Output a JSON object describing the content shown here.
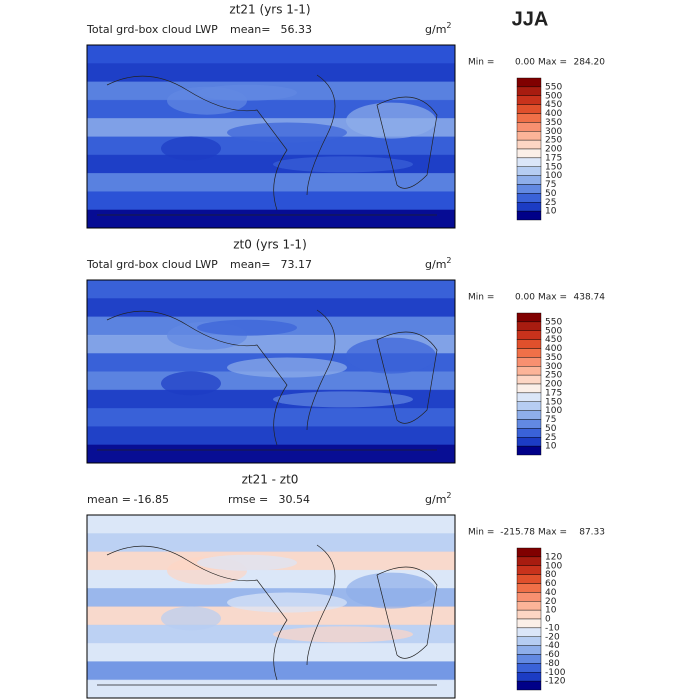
{
  "season": "JJA",
  "panels": [
    {
      "title": "zt21 (yrs 1-1)",
      "left_label": "Total grd-box cloud LWP",
      "stats": [
        {
          "label": "mean=",
          "value": "56.33"
        }
      ],
      "units": "g/m",
      "units_power": "2",
      "min_label": "Min =",
      "min": "0.00",
      "max_label": "Max =",
      "max": "284.20",
      "colorbar": {
        "levels": [
          550,
          500,
          450,
          400,
          350,
          300,
          250,
          200,
          175,
          150,
          100,
          75,
          50,
          25,
          10
        ],
        "colors": [
          "#800000",
          "#a81c10",
          "#c8321c",
          "#e0502c",
          "#f07048",
          "#f89070",
          "#fcb498",
          "#fdd6c4",
          "#fbefe8",
          "#dbe6f8",
          "#b6cdf2",
          "#8eaeea",
          "#6289e2",
          "#3a62d8",
          "#1c3cc4",
          "#000088"
        ]
      }
    },
    {
      "title": "zt0 (yrs 1-1)",
      "left_label": "Total grd-box cloud LWP",
      "stats": [
        {
          "label": "mean=",
          "value": "73.17"
        }
      ],
      "units": "g/m",
      "units_power": "2",
      "min_label": "Min =",
      "min": "0.00",
      "max_label": "Max =",
      "max": "438.74",
      "colorbar": {
        "levels": [
          550,
          500,
          450,
          400,
          350,
          300,
          250,
          200,
          175,
          150,
          100,
          75,
          50,
          25,
          10
        ],
        "colors": [
          "#800000",
          "#a81c10",
          "#c8321c",
          "#e0502c",
          "#f07048",
          "#f89070",
          "#fcb498",
          "#fdd6c4",
          "#fbefe8",
          "#dbe6f8",
          "#b6cdf2",
          "#8eaeea",
          "#6289e2",
          "#3a62d8",
          "#1c3cc4",
          "#000088"
        ]
      }
    },
    {
      "title": "zt21 - zt0",
      "stats": [
        {
          "label": "mean =",
          "value": "-16.85"
        },
        {
          "label": "rmse =",
          "value": "30.54"
        }
      ],
      "units": "g/m",
      "units_power": "2",
      "min_label": "Min =",
      "min": "-215.78",
      "max_label": "Max =",
      "max": "87.33",
      "colorbar": {
        "levels": [
          120,
          100,
          80,
          60,
          40,
          20,
          10,
          0,
          -10,
          -20,
          -40,
          -60,
          -80,
          -100,
          -120
        ],
        "colors": [
          "#800000",
          "#a81c10",
          "#c8321c",
          "#e0502c",
          "#f07048",
          "#f89070",
          "#fcb498",
          "#fdd6c4",
          "#fbefe8",
          "#dbe6f8",
          "#b6cdf2",
          "#8eaeea",
          "#6289e2",
          "#3a62d8",
          "#1c3cc4",
          "#000088"
        ]
      }
    }
  ]
}
